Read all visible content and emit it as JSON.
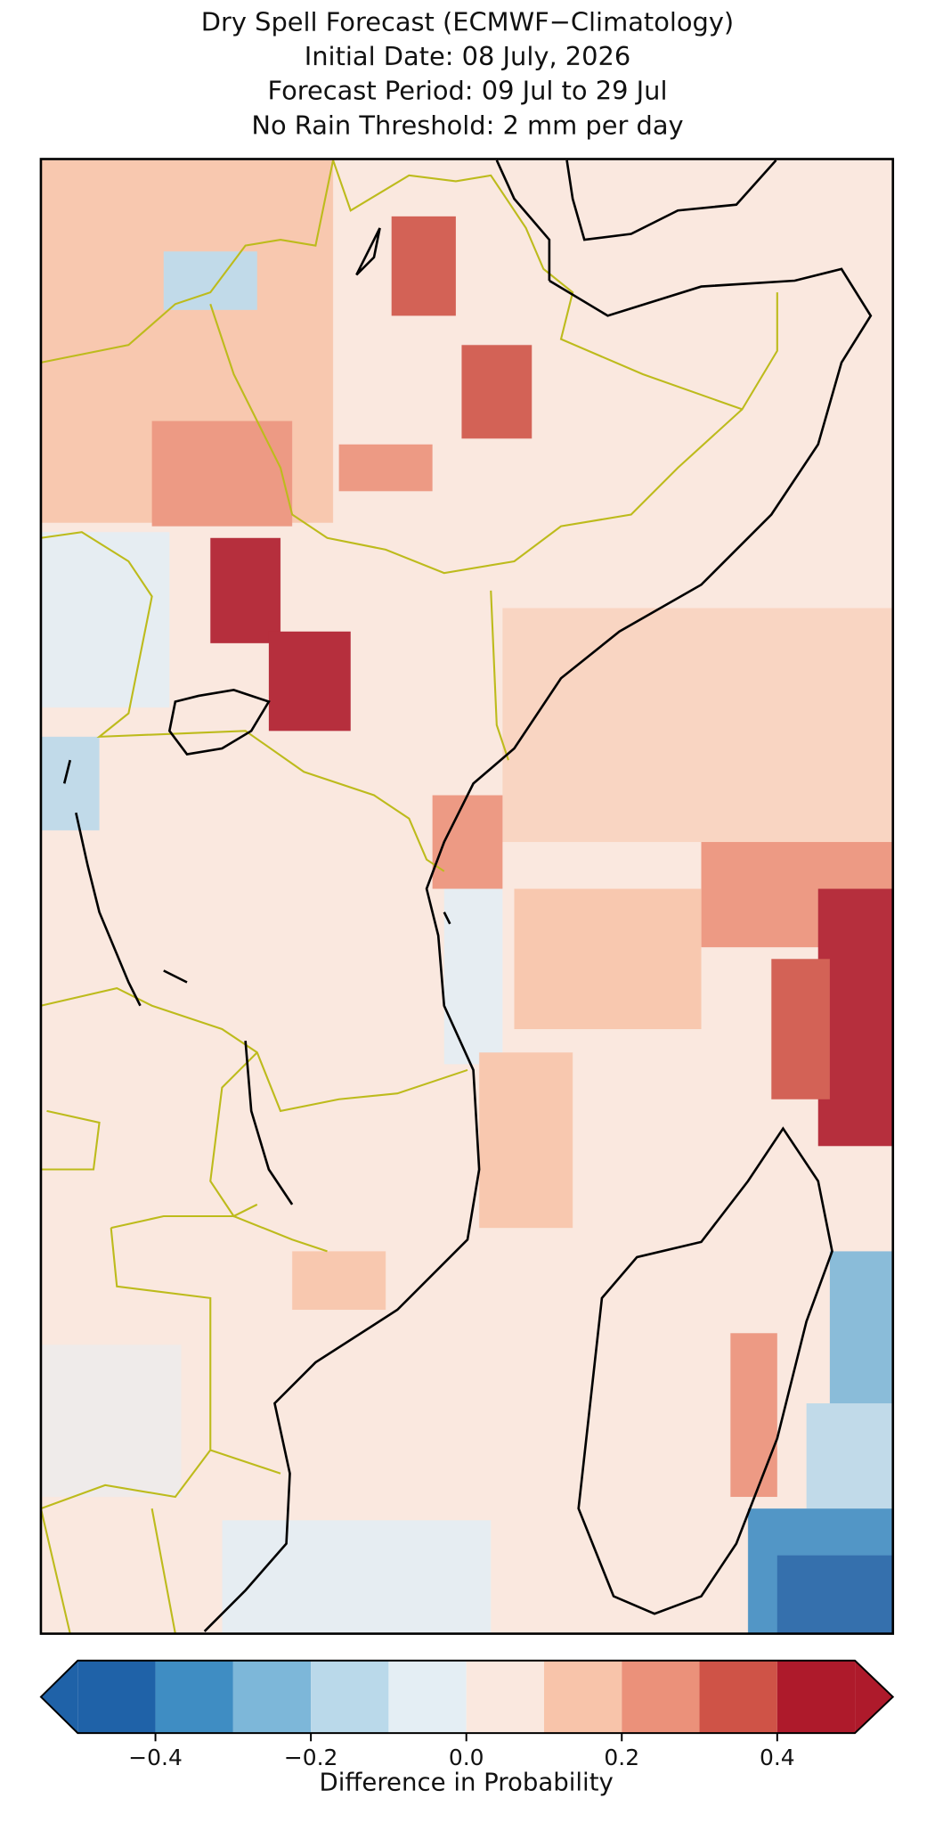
{
  "chart_data": {
    "type": "map",
    "title": [
      "Dry Spell Forecast (ECMWF−Climatology)",
      "Initial Date: 08 July, 2026",
      "Forecast Period: 09 Jul to 29 Jul",
      "No Rain Threshold: 2 mm per day"
    ],
    "colorbar": {
      "label": "Difference in Probability",
      "boundaries": [
        -0.5,
        -0.4,
        -0.3,
        -0.2,
        -0.1,
        0,
        0.1,
        0.2,
        0.3,
        0.4,
        0.5
      ],
      "colors": [
        "#1f62a8",
        "#3f8dc3",
        "#7db7d9",
        "#bad9ea",
        "#e4eef4",
        "#fae8df",
        "#f8c4aa",
        "#eb917a",
        "#cf5347",
        "#ae1a2b"
      ],
      "under_color": "#1f62a8",
      "over_color": "#ae1a2b",
      "extend": "both",
      "xlim": [
        -0.5,
        0.5
      ],
      "xticks": [
        {
          "value": -0.4,
          "label": "−0.4"
        },
        {
          "value": -0.2,
          "label": "−0.2"
        },
        {
          "value": 0,
          "label": "0.0"
        },
        0.2,
        0.4
      ]
    }
  }
}
